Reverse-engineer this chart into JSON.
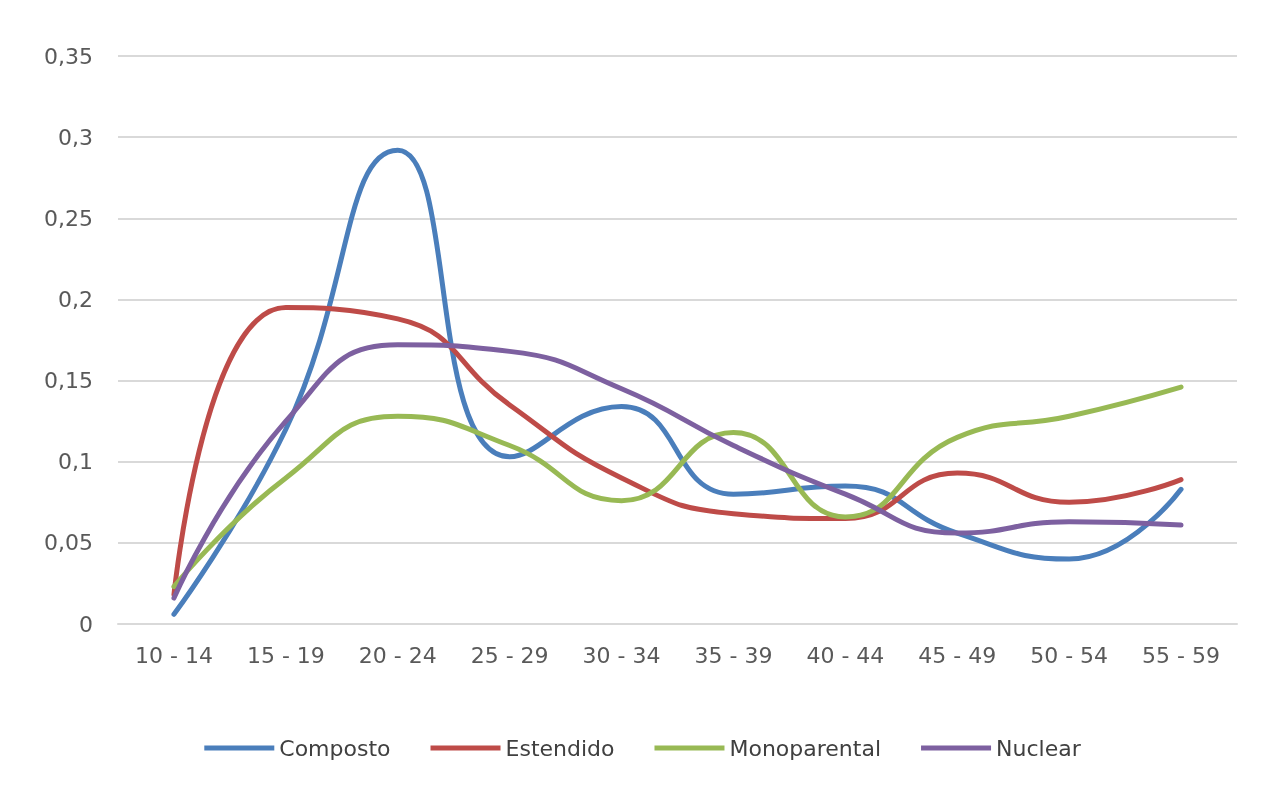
{
  "chart_data": {
    "type": "line",
    "categories": [
      "10 - 14",
      "15 - 19",
      "20 - 24",
      "25 - 29",
      "30 - 34",
      "35 - 39",
      "40 - 44",
      "45 - 49",
      "50 - 54",
      "55 - 59"
    ],
    "series": [
      {
        "name": "Composto",
        "color": "#4a7ebb",
        "values": [
          0.006,
          0.12,
          0.292,
          0.103,
          0.134,
          0.08,
          0.085,
          0.056,
          0.04,
          0.083
        ]
      },
      {
        "name": "Estendido",
        "color": "#be4b48",
        "values": [
          0.018,
          0.195,
          0.188,
          0.135,
          0.09,
          0.068,
          0.065,
          0.093,
          0.075,
          0.089
        ]
      },
      {
        "name": "Monoparental",
        "color": "#98b954",
        "values": [
          0.023,
          0.09,
          0.128,
          0.11,
          0.076,
          0.118,
          0.066,
          0.115,
          0.128,
          0.146
        ]
      },
      {
        "name": "Nuclear",
        "color": "#7d60a0",
        "values": [
          0.016,
          0.125,
          0.172,
          0.168,
          0.145,
          0.11,
          0.08,
          0.056,
          0.063,
          0.061
        ]
      }
    ],
    "ylim": [
      0,
      0.35
    ],
    "yticks": [
      {
        "value": 0,
        "label": "0"
      },
      {
        "value": 0.05,
        "label": "0,05"
      },
      {
        "value": 0.1,
        "label": "0,1"
      },
      {
        "value": 0.15,
        "label": "0,15"
      },
      {
        "value": 0.2,
        "label": "0,2"
      },
      {
        "value": 0.25,
        "label": "0,25"
      },
      {
        "value": 0.3,
        "label": "0,3"
      },
      {
        "value": 0.35,
        "label": "0,35"
      }
    ],
    "grid": "y",
    "legend": "bottom",
    "marker": "none",
    "line_style": "solid"
  }
}
